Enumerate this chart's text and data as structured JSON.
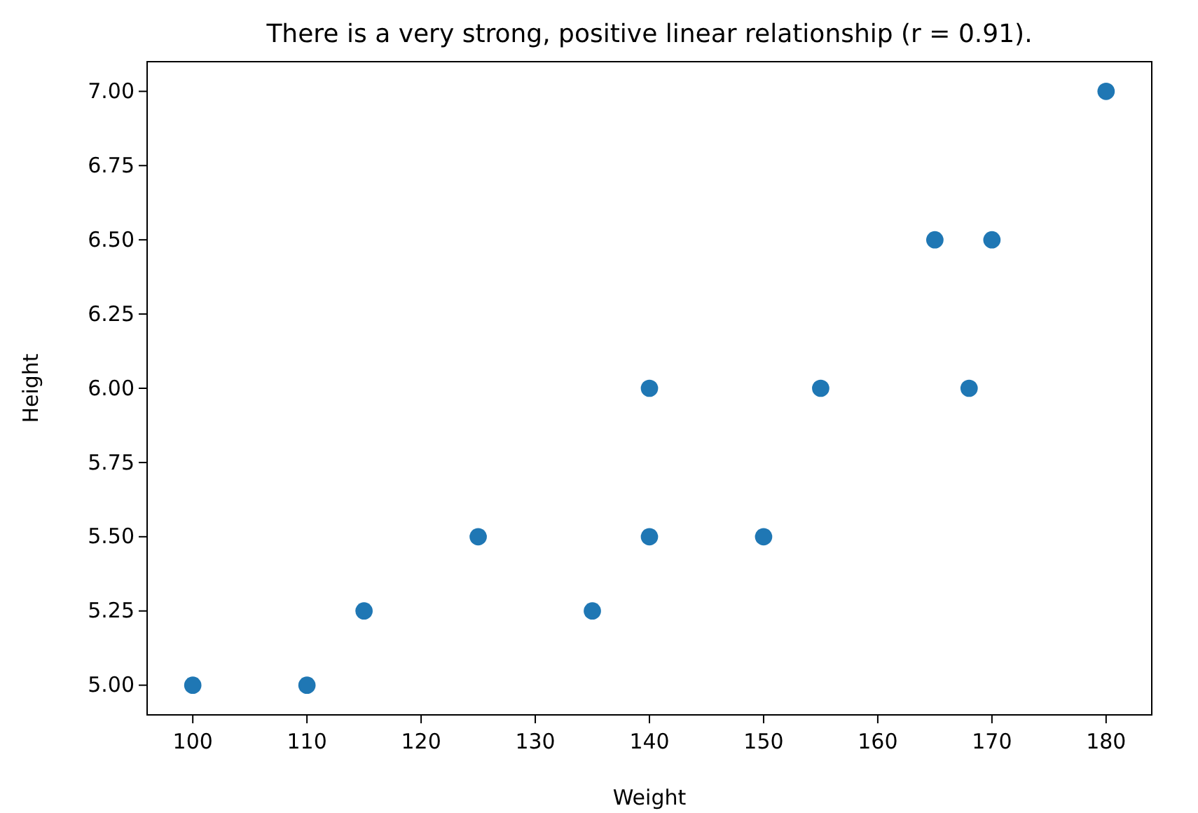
{
  "chart_data": {
    "type": "scatter",
    "title": "There is a very strong, positive linear relationship (r = 0.91).",
    "xlabel": "Weight",
    "ylabel": "Height",
    "x": [
      100,
      110,
      115,
      125,
      135,
      140,
      140,
      150,
      155,
      165,
      168,
      170,
      180
    ],
    "series": [
      {
        "color": "#1f77b4",
        "values": [
          5.0,
          5.0,
          5.25,
          5.5,
          5.25,
          5.5,
          6.0,
          5.5,
          6.0,
          6.5,
          6.0,
          6.5,
          7.0
        ]
      }
    ],
    "xlim": [
      96,
      184
    ],
    "xticks": [
      100,
      110,
      120,
      130,
      140,
      150,
      160,
      170,
      180
    ],
    "ylim": [
      4.9,
      7.1
    ],
    "yticks": [
      {
        "value": 5,
        "label": "5.00"
      },
      {
        "value": 5.25,
        "label": "5.25"
      },
      {
        "value": 5.5,
        "label": "5.50"
      },
      {
        "value": 5.75,
        "label": "5.75"
      },
      {
        "value": 6,
        "label": "6.00"
      },
      {
        "value": 6.25,
        "label": "6.25"
      },
      {
        "value": 6.5,
        "label": "6.50"
      },
      {
        "value": 6.75,
        "label": "6.75"
      },
      {
        "value": 7,
        "label": "7.00"
      }
    ],
    "marker": "circle",
    "grid": false
  }
}
